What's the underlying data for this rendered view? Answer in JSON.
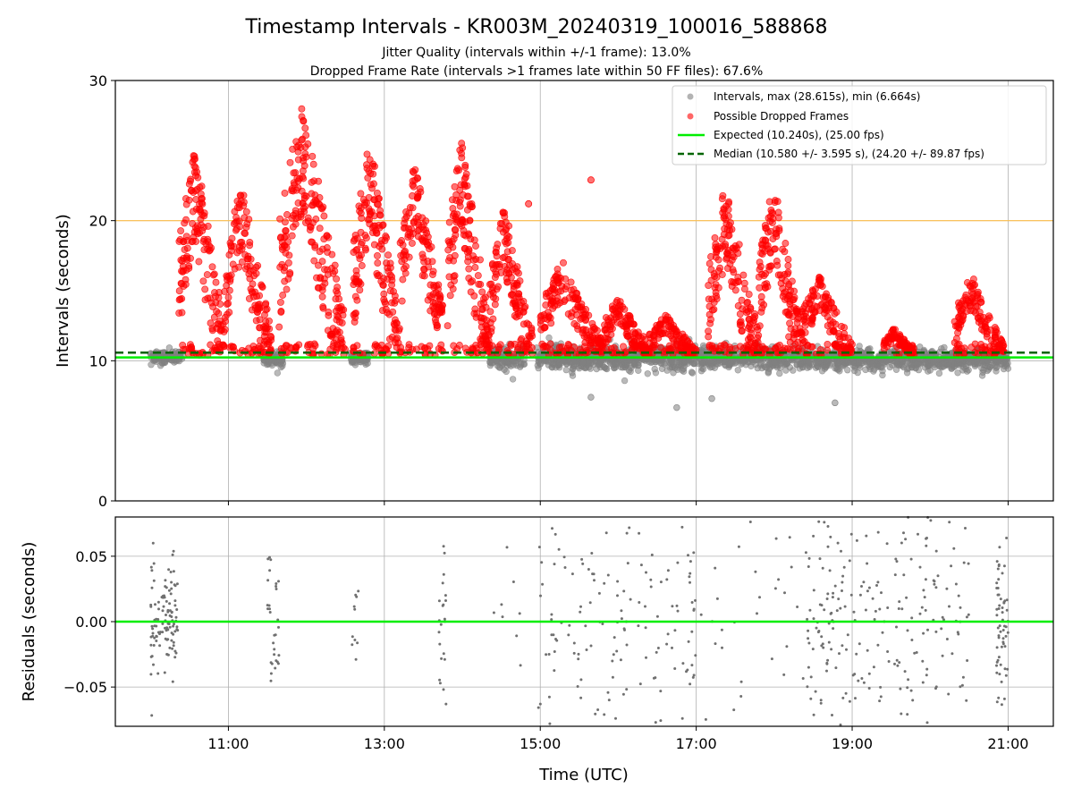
{
  "title": "Timestamp Intervals - KR003M_20240319_100016_588868",
  "subtitle1": "Jitter Quality (intervals within +/-1 frame): 13.0%",
  "subtitle2": "Dropped Frame Rate (intervals >1 frames late within 50 FF files): 67.6%",
  "colors": {
    "intervals": "#808080",
    "dropped": "#ff0000",
    "expected": "#00ee00",
    "median": "#006400",
    "threshold": "#ffc04d"
  },
  "chart_data": [
    {
      "type": "scatter",
      "xlabel": "",
      "ylabel": "Intervals (seconds)",
      "xlim": [
        9.55,
        21.58
      ],
      "ylim": [
        0,
        30
      ],
      "yticks": [
        0,
        10,
        20,
        30
      ],
      "ytick_labels": [
        "0",
        "10",
        "20",
        "30"
      ],
      "xticks": [
        11,
        13,
        15,
        17,
        19,
        21
      ],
      "xtick_labels": [
        "11:00",
        "13:00",
        "15:00",
        "17:00",
        "19:00",
        "21:00"
      ],
      "grid": true,
      "legend_position": "top-right",
      "legend": [
        {
          "label": "Intervals, max (28.615s), min (6.664s)",
          "kind": "dot",
          "color": "#808080"
        },
        {
          "label": "Possible Dropped Frames",
          "kind": "dot",
          "color": "#ff0000"
        },
        {
          "label": "Expected (10.240s), (25.00 fps)",
          "kind": "line",
          "color": "#00ee00"
        },
        {
          "label": "Median (10.580 +/- 3.595 s), (24.20 +/- 89.87 fps)",
          "kind": "dashed",
          "color": "#006400"
        }
      ],
      "reference_lines": {
        "expected": 10.24,
        "median": 10.58,
        "threshold": 20.0
      },
      "series": [
        {
          "name": "Intervals, max (28.615s), min (6.664s)",
          "clusters": [
            {
              "x": [
                10.0,
                10.42
              ],
              "y": 10.3,
              "spread": 0.35
            },
            {
              "x": [
                11.45,
                11.7
              ],
              "y": 10.1,
              "spread": 0.4
            },
            {
              "x": [
                12.55,
                12.8
              ],
              "y": 10.2,
              "spread": 0.4
            },
            {
              "x": [
                14.35,
                14.8
              ],
              "y": 10.2,
              "spread": 0.6
            },
            {
              "x": [
                14.95,
                18.25
              ],
              "y": 10.2,
              "spread": 0.7
            },
            {
              "x": [
                18.25,
                21.0
              ],
              "y": 10.1,
              "spread": 0.6
            }
          ],
          "outliers": [
            [
              16.75,
              6.66
            ],
            [
              18.78,
              7.0
            ],
            [
              15.65,
              7.4
            ],
            [
              17.2,
              7.3
            ]
          ]
        },
        {
          "name": "Possible Dropped Frames",
          "bursts": [
            {
              "x": [
                10.36,
                10.95
              ],
              "ymin": 10.6,
              "ymax": 25.6
            },
            {
              "x": [
                10.95,
                11.55
              ],
              "ymin": 10.6,
              "ymax": 22.9
            },
            {
              "x": [
                11.65,
                12.5
              ],
              "ymin": 10.8,
              "ymax": 28.6
            },
            {
              "x": [
                12.6,
                13.2
              ],
              "ymin": 10.8,
              "ymax": 26.2
            },
            {
              "x": [
                13.2,
                13.75
              ],
              "ymin": 12.3,
              "ymax": 24.3
            },
            {
              "x": [
                13.8,
                14.35
              ],
              "ymin": 10.7,
              "ymax": 26.1
            },
            {
              "x": [
                14.35,
                14.9
              ],
              "ymin": 10.6,
              "ymax": 21.2
            },
            {
              "x": [
                15.0,
                15.8
              ],
              "ymin": 10.5,
              "ymax": 17.2
            },
            {
              "x": [
                15.8,
                16.4
              ],
              "ymin": 10.4,
              "ymax": 14.7
            },
            {
              "x": [
                16.4,
                17.0
              ],
              "ymin": 10.4,
              "ymax": 13.3
            },
            {
              "x": [
                17.15,
                17.8
              ],
              "ymin": 10.5,
              "ymax": 22.7
            },
            {
              "x": [
                17.8,
                18.35
              ],
              "ymin": 10.6,
              "ymax": 23.0
            },
            {
              "x": [
                18.35,
                19.0
              ],
              "ymin": 10.4,
              "ymax": 16.2
            },
            {
              "x": [
                19.4,
                19.8
              ],
              "ymin": 10.4,
              "ymax": 12.4
            },
            {
              "x": [
                20.3,
                20.95
              ],
              "ymin": 10.4,
              "ymax": 16.2
            }
          ],
          "outliers": [
            [
              15.65,
              22.9
            ],
            [
              14.85,
              21.2
            ]
          ]
        }
      ]
    },
    {
      "type": "scatter",
      "xlabel": "Time (UTC)",
      "ylabel": "Residuals (seconds)",
      "xlim": [
        9.55,
        21.58
      ],
      "ylim": [
        -0.08,
        0.08
      ],
      "yticks": [
        0.05,
        0.0,
        -0.05
      ],
      "ytick_labels": [
        "0.05",
        "0.00",
        "−0.05"
      ],
      "xticks": [
        11,
        13,
        15,
        17,
        19,
        21
      ],
      "xtick_labels": [
        "11:00",
        "13:00",
        "15:00",
        "17:00",
        "19:00",
        "21:00"
      ],
      "grid": true,
      "reference_line": 0.0,
      "series": [
        {
          "name": "",
          "clusters": [
            {
              "x": [
                10.0,
                10.35
              ],
              "sd": 0.025,
              "n": 110
            },
            {
              "x": [
                11.5,
                11.65
              ],
              "sd": 0.03,
              "n": 30
            },
            {
              "x": [
                12.58,
                12.68
              ],
              "sd": 0.025,
              "n": 10
            },
            {
              "x": [
                13.7,
                13.8
              ],
              "sd": 0.03,
              "n": 22
            },
            {
              "x": [
                14.3,
                14.75
              ],
              "sd": 0.04,
              "n": 8
            },
            {
              "x": [
                14.95,
                17.0
              ],
              "sd": 0.05,
              "n": 160
            },
            {
              "x": [
                17.0,
                18.4
              ],
              "sd": 0.05,
              "n": 30
            },
            {
              "x": [
                18.4,
                20.5
              ],
              "sd": 0.05,
              "n": 230
            },
            {
              "x": [
                20.85,
                21.0
              ],
              "sd": 0.035,
              "n": 60
            }
          ]
        }
      ]
    }
  ]
}
